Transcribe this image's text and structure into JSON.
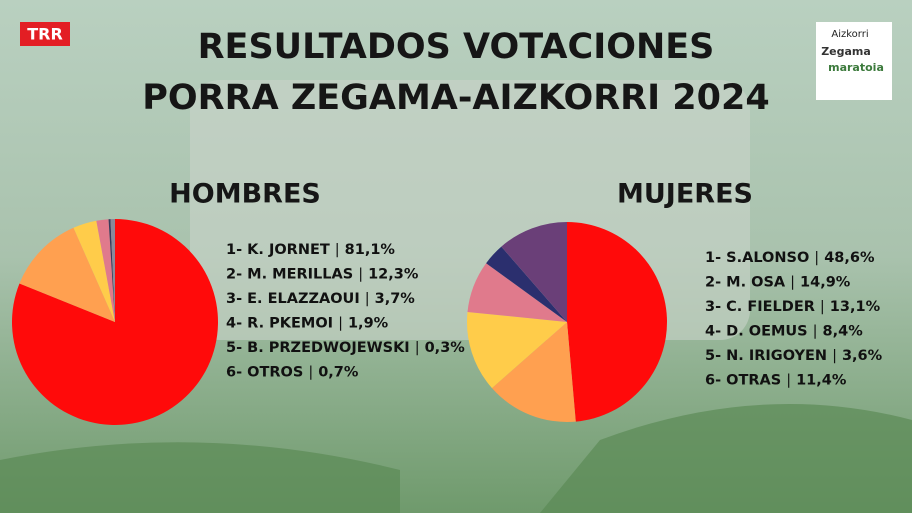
{
  "title_lines": [
    "RESULTADOS VOTACIONES",
    "PORRA ZEGAMA-AIZKORRI 2024"
  ],
  "logo_left": "TRR",
  "logo_right": [
    "Aizkorri",
    "Zegama",
    "maratoia"
  ],
  "chart_data": [
    {
      "type": "pie",
      "title": "HOMBRES",
      "separator": "|",
      "categories": [
        "1- K. JORNET",
        "2- M. MERILLAS",
        "3- E. ELAZZAOUI",
        "4- R. PKEMOI",
        "5- B. PRZEDWOJEWSKI",
        "6- OTROS"
      ],
      "values": [
        81.1,
        12.3,
        3.7,
        1.9,
        0.3,
        0.7
      ],
      "value_labels": [
        "81,1%",
        "12,3%",
        "3,7%",
        "1,9%",
        "0,3%",
        "0,7%"
      ],
      "colors": [
        "#ff0a0a",
        "#ffa050",
        "#ffcc4a",
        "#e07a8c",
        "#3a3a5a",
        "#8a8a9a"
      ]
    },
    {
      "type": "pie",
      "title": "MUJERES",
      "separator": "|",
      "categories": [
        "1- S.ALONSO",
        "2- M. OSA",
        "3- C. FIELDER",
        "4- D. OEMUS",
        "5- N. IRIGOYEN",
        "6- OTRAS"
      ],
      "values": [
        48.6,
        14.9,
        13.1,
        8.4,
        3.6,
        11.4
      ],
      "value_labels": [
        "48,6%",
        "14,9%",
        "13,1%",
        "8,4%",
        "3,6%",
        "11,4%"
      ],
      "colors": [
        "#ff0a0a",
        "#ffa050",
        "#ffcc4a",
        "#e07a8c",
        "#2b2f6e",
        "#6a3f78"
      ]
    }
  ]
}
